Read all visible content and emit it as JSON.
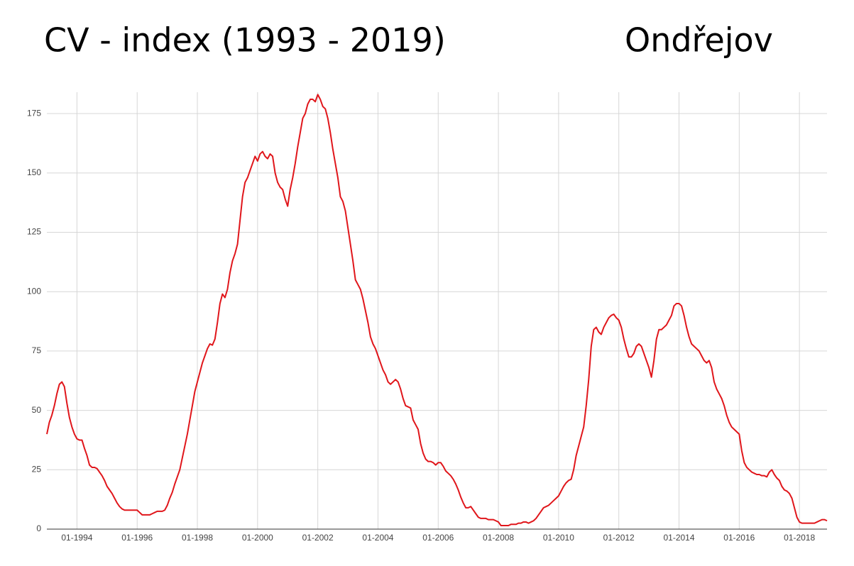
{
  "chart_data": {
    "type": "line",
    "title": "CV - index (1993 - 2019)",
    "subtitle": "Ondřejov",
    "x": [
      "01-1993",
      "02-1993",
      "03-1993",
      "04-1993",
      "05-1993",
      "06-1993",
      "07-1993",
      "08-1993",
      "09-1993",
      "10-1993",
      "11-1993",
      "12-1993",
      "01-1994",
      "02-1994",
      "03-1994",
      "04-1994",
      "05-1994",
      "06-1994",
      "07-1994",
      "08-1994",
      "09-1994",
      "10-1994",
      "11-1994",
      "12-1994",
      "01-1995",
      "02-1995",
      "03-1995",
      "04-1995",
      "05-1995",
      "06-1995",
      "07-1995",
      "08-1995",
      "09-1995",
      "10-1995",
      "11-1995",
      "12-1995",
      "01-1996",
      "02-1996",
      "03-1996",
      "04-1996",
      "05-1996",
      "06-1996",
      "07-1996",
      "08-1996",
      "09-1996",
      "10-1996",
      "11-1996",
      "12-1996",
      "01-1997",
      "02-1997",
      "03-1997",
      "04-1997",
      "05-1997",
      "06-1997",
      "07-1997",
      "08-1997",
      "09-1997",
      "10-1997",
      "11-1997",
      "12-1997",
      "01-1998",
      "02-1998",
      "03-1998",
      "04-1998",
      "05-1998",
      "06-1998",
      "07-1998",
      "08-1998",
      "09-1998",
      "10-1998",
      "11-1998",
      "12-1998",
      "01-1999",
      "02-1999",
      "03-1999",
      "04-1999",
      "05-1999",
      "06-1999",
      "07-1999",
      "08-1999",
      "09-1999",
      "10-1999",
      "11-1999",
      "12-1999",
      "01-2000",
      "02-2000",
      "03-2000",
      "04-2000",
      "05-2000",
      "06-2000",
      "07-2000",
      "08-2000",
      "09-2000",
      "10-2000",
      "11-2000",
      "12-2000",
      "01-2001",
      "02-2001",
      "03-2001",
      "04-2001",
      "05-2001",
      "06-2001",
      "07-2001",
      "08-2001",
      "09-2001",
      "10-2001",
      "11-2001",
      "12-2001",
      "01-2002",
      "02-2002",
      "03-2002",
      "04-2002",
      "05-2002",
      "06-2002",
      "07-2002",
      "08-2002",
      "09-2002",
      "10-2002",
      "11-2002",
      "12-2002",
      "01-2003",
      "02-2003",
      "03-2003",
      "04-2003",
      "05-2003",
      "06-2003",
      "07-2003",
      "08-2003",
      "09-2003",
      "10-2003",
      "11-2003",
      "12-2003",
      "01-2004",
      "02-2004",
      "03-2004",
      "04-2004",
      "05-2004",
      "06-2004",
      "07-2004",
      "08-2004",
      "09-2004",
      "10-2004",
      "11-2004",
      "12-2004",
      "01-2005",
      "02-2005",
      "03-2005",
      "04-2005",
      "05-2005",
      "06-2005",
      "07-2005",
      "08-2005",
      "09-2005",
      "10-2005",
      "11-2005",
      "12-2005",
      "01-2006",
      "02-2006",
      "03-2006",
      "04-2006",
      "05-2006",
      "06-2006",
      "07-2006",
      "08-2006",
      "09-2006",
      "10-2006",
      "11-2006",
      "12-2006",
      "01-2007",
      "02-2007",
      "03-2007",
      "04-2007",
      "05-2007",
      "06-2007",
      "07-2007",
      "08-2007",
      "09-2007",
      "10-2007",
      "11-2007",
      "12-2007",
      "01-2008",
      "02-2008",
      "03-2008",
      "04-2008",
      "05-2008",
      "06-2008",
      "07-2008",
      "08-2008",
      "09-2008",
      "10-2008",
      "11-2008",
      "12-2008",
      "01-2009",
      "02-2009",
      "03-2009",
      "04-2009",
      "05-2009",
      "06-2009",
      "07-2009",
      "08-2009",
      "09-2009",
      "10-2009",
      "11-2009",
      "12-2009",
      "01-2010",
      "02-2010",
      "03-2010",
      "04-2010",
      "05-2010",
      "06-2010",
      "07-2010",
      "08-2010",
      "09-2010",
      "10-2010",
      "11-2010",
      "12-2010",
      "01-2011",
      "02-2011",
      "03-2011",
      "04-2011",
      "05-2011",
      "06-2011",
      "07-2011",
      "08-2011",
      "09-2011",
      "10-2011",
      "11-2011",
      "12-2011",
      "01-2012",
      "02-2012",
      "03-2012",
      "04-2012",
      "05-2012",
      "06-2012",
      "07-2012",
      "08-2012",
      "09-2012",
      "10-2012",
      "11-2012",
      "12-2012",
      "01-2013",
      "02-2013",
      "03-2013",
      "04-2013",
      "05-2013",
      "06-2013",
      "07-2013",
      "08-2013",
      "09-2013",
      "10-2013",
      "11-2013",
      "12-2013",
      "01-2014",
      "02-2014",
      "03-2014",
      "04-2014",
      "05-2014",
      "06-2014",
      "07-2014",
      "08-2014",
      "09-2014",
      "10-2014",
      "11-2014",
      "12-2014",
      "01-2015",
      "02-2015",
      "03-2015",
      "04-2015",
      "05-2015",
      "06-2015",
      "07-2015",
      "08-2015",
      "09-2015",
      "10-2015",
      "11-2015",
      "12-2015",
      "01-2016",
      "02-2016",
      "03-2016",
      "04-2016",
      "05-2016",
      "06-2016",
      "07-2016",
      "08-2016",
      "09-2016",
      "10-2016",
      "11-2016",
      "12-2016",
      "01-2017",
      "02-2017",
      "03-2017",
      "04-2017",
      "05-2017",
      "06-2017",
      "07-2017",
      "08-2017",
      "09-2017",
      "10-2017",
      "11-2017",
      "12-2017",
      "01-2018",
      "02-2018",
      "03-2018",
      "04-2018",
      "05-2018",
      "06-2018",
      "07-2018",
      "08-2018",
      "09-2018",
      "10-2018",
      "11-2018",
      "12-2018"
    ],
    "series": [
      {
        "color": "#e0161b",
        "values": [
          40,
          45,
          48,
          52,
          57,
          61,
          62,
          60,
          53,
          47,
          43,
          40,
          38,
          37.5,
          37.5,
          34,
          31,
          27,
          26,
          26,
          25.5,
          24,
          22.5,
          20.5,
          18,
          16.5,
          15,
          13,
          11,
          9.5,
          8.5,
          8,
          8,
          8,
          8,
          8,
          8,
          7,
          6,
          6,
          6,
          6,
          6.5,
          7,
          7.5,
          7.5,
          7.5,
          8,
          10,
          13,
          15.5,
          19,
          22,
          25,
          30,
          35,
          40,
          46,
          52,
          58,
          62,
          66,
          70,
          73,
          76,
          78,
          77.5,
          80,
          87,
          95,
          99,
          97.5,
          101,
          108,
          113,
          116,
          120,
          130,
          140,
          146,
          148,
          151,
          154,
          157,
          155,
          158,
          159,
          157,
          156,
          158,
          157,
          150,
          146,
          144,
          143,
          139,
          136,
          143,
          148,
          154,
          161,
          167,
          173,
          175,
          179,
          181,
          181,
          180,
          183,
          181,
          178,
          177,
          173,
          167,
          160,
          154,
          148,
          140,
          138,
          134,
          127,
          120,
          113,
          105,
          103,
          101,
          97,
          92,
          87,
          81,
          78,
          76,
          73,
          70,
          67,
          65,
          62,
          61,
          62,
          63,
          62,
          59,
          55,
          52,
          51.5,
          51,
          46,
          44,
          42,
          36,
          32,
          29.5,
          28.5,
          28.5,
          28,
          27,
          28,
          28,
          26.5,
          24.5,
          23.5,
          22.5,
          21,
          19,
          16.5,
          13.5,
          11,
          9,
          9,
          9.5,
          8,
          6.5,
          5,
          4.5,
          4.5,
          4.5,
          4,
          4,
          4,
          3.5,
          3,
          1.5,
          1.5,
          1.5,
          1.5,
          2,
          2,
          2,
          2.5,
          2.5,
          3,
          3,
          2.5,
          3,
          3.5,
          4.5,
          6,
          7.5,
          9,
          9.5,
          10,
          11,
          12,
          13,
          14,
          16,
          18,
          19.5,
          20.5,
          21,
          25,
          31,
          35,
          39,
          43,
          52,
          63,
          77,
          84,
          85,
          83,
          82,
          85,
          87,
          89,
          90,
          90.5,
          89,
          88,
          85,
          80,
          76,
          72.5,
          72.5,
          74,
          77,
          78,
          77,
          74,
          71,
          68,
          64,
          71,
          80,
          84,
          84,
          85,
          86,
          88,
          90,
          94,
          95,
          95,
          94,
          90,
          85,
          81,
          78,
          77,
          76,
          75,
          73,
          71,
          70,
          71,
          68,
          62,
          59,
          57,
          55,
          52,
          48,
          45,
          43,
          42,
          41,
          40,
          33,
          28,
          26,
          25,
          24,
          23.5,
          23,
          23,
          22.5,
          22.5,
          22,
          24,
          25,
          23,
          21.5,
          20.5,
          18,
          16.5,
          16,
          15,
          13,
          9,
          5,
          3,
          2.5,
          2.5,
          2.5,
          2.5,
          2.5,
          2.5,
          3,
          3.5,
          4,
          4,
          3.5
        ]
      }
    ],
    "xlim": [
      "01-1993",
      "12-2018"
    ],
    "xticks": [
      "01-1994",
      "01-1996",
      "01-1998",
      "01-2000",
      "01-2002",
      "01-2004",
      "01-2006",
      "01-2008",
      "01-2010",
      "01-2012",
      "01-2014",
      "01-2016",
      "01-2018"
    ],
    "ylim": [
      0,
      184
    ],
    "yticks": [
      0,
      25,
      50,
      75,
      100,
      125,
      150,
      175
    ],
    "grid": true
  }
}
